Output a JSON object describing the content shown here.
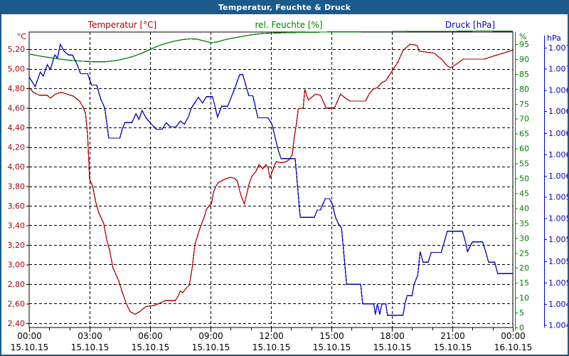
{
  "window": {
    "title_bar": {
      "title": "Temperatur, Feuchte & Druck",
      "bg_color": "#1b5a8b",
      "text_color": "#ffffff"
    }
  },
  "chart_data": {
    "type": "line",
    "title": "Temperatur, Feuchte & Druck",
    "legend": [
      {
        "label": "Temperatur [°C]",
        "color": "#b00000"
      },
      {
        "label": "rel. Feuchte [%]",
        "color": "#008000"
      },
      {
        "label": "Druck [hPa]",
        "color": "#0000bb"
      }
    ],
    "x_axis": {
      "range_hours": [
        0,
        24
      ],
      "minor_tick_every_hours": 1,
      "gridline_every_hours": 3,
      "ticks": [
        {
          "hour": 0,
          "time": "00:00",
          "date": "15.10.15"
        },
        {
          "hour": 3,
          "time": "03:00",
          "date": "15.10.15"
        },
        {
          "hour": 6,
          "time": "06:00",
          "date": "15.10.15"
        },
        {
          "hour": 9,
          "time": "09:00",
          "date": "15.10.15"
        },
        {
          "hour": 12,
          "time": "12:00",
          "date": "15.10.15"
        },
        {
          "hour": 15,
          "time": "15:00",
          "date": "15.10.15"
        },
        {
          "hour": 18,
          "time": "18:00",
          "date": "15.10.15"
        },
        {
          "hour": 21,
          "time": "21:00",
          "date": "15.10.15"
        },
        {
          "hour": 24,
          "time": "00:00",
          "date": "16.10.15"
        }
      ]
    },
    "y_axes": {
      "temperature": {
        "unit_label": "°C",
        "color": "#b00000",
        "side": "left",
        "top_value": 5.3755,
        "bottom_value": 2.3555,
        "tick_values": [
          5.2,
          5.0,
          4.8,
          4.6,
          4.4,
          4.2,
          4.0,
          3.8,
          3.6,
          3.4,
          3.2,
          3.0,
          2.8,
          2.6,
          2.4
        ],
        "tick_labels": [
          "5,20",
          "5,00",
          "4,80",
          "4,60",
          "4,40",
          "4,20",
          "4,00",
          "3,80",
          "3,60",
          "3,40",
          "3,20",
          "3,00",
          "2,80",
          "2,60",
          "2,40"
        ]
      },
      "humidity": {
        "unit_label": "%",
        "color": "#008000",
        "side": "right",
        "top_value": 99.06,
        "bottom_value": 0,
        "tick_values": [
          95,
          90,
          85,
          80,
          75,
          70,
          65,
          60,
          55,
          50,
          45,
          40,
          35,
          30,
          25,
          20,
          15,
          10,
          5,
          0
        ],
        "tick_labels": [
          "95",
          "90",
          "85",
          "80",
          "75",
          "70",
          "65",
          "60",
          "55",
          "50",
          "45",
          "40",
          "35",
          "30",
          "25",
          "20",
          "15",
          "10",
          "5",
          "0"
        ]
      },
      "pressure": {
        "unit_label": "hPa",
        "color": "#0000bb",
        "side": "far-right",
        "top_value": 1007.49,
        "bottom_value": 1003.87,
        "tick_values": [
          1007.3,
          1007.04,
          1006.78,
          1006.52,
          1006.25,
          1005.99,
          1005.73,
          1005.47,
          1005.21,
          1004.95,
          1004.68,
          1004.42,
          1004.16,
          1003.9
        ],
        "tick_labels": [
          "1.007",
          "1.007",
          "1.006",
          "1.006",
          "1.006",
          "1.006",
          "1.006",
          "1.005",
          "1.005",
          "1.005",
          "1.005",
          "1.005",
          "1.004",
          "1.004"
        ]
      }
    },
    "series": [
      {
        "name": "Temperatur",
        "axis": "temperature",
        "unit": "°C",
        "color": "#b00000",
        "points": [
          [
            0,
            4.81
          ],
          [
            0.2,
            4.76
          ],
          [
            0.5,
            4.73
          ],
          [
            0.9,
            4.73
          ],
          [
            1.05,
            4.7
          ],
          [
            1.3,
            4.74
          ],
          [
            1.6,
            4.76
          ],
          [
            1.9,
            4.74
          ],
          [
            2.2,
            4.72
          ],
          [
            2.5,
            4.67
          ],
          [
            2.7,
            4.6
          ],
          [
            2.8,
            4.54
          ],
          [
            2.9,
            4.32
          ],
          [
            3.0,
            3.87
          ],
          [
            3.15,
            3.8
          ],
          [
            3.3,
            3.64
          ],
          [
            3.45,
            3.53
          ],
          [
            3.7,
            3.42
          ],
          [
            3.85,
            3.25
          ],
          [
            4.0,
            3.14
          ],
          [
            4.15,
            2.97
          ],
          [
            4.45,
            2.83
          ],
          [
            4.6,
            2.73
          ],
          [
            4.8,
            2.61
          ],
          [
            5.0,
            2.52
          ],
          [
            5.25,
            2.49
          ],
          [
            5.5,
            2.52
          ],
          [
            5.8,
            2.57
          ],
          [
            6.2,
            2.58
          ],
          [
            6.55,
            2.61
          ],
          [
            6.75,
            2.63
          ],
          [
            7.25,
            2.63
          ],
          [
            7.4,
            2.68
          ],
          [
            7.5,
            2.73
          ],
          [
            7.62,
            2.71
          ],
          [
            7.8,
            2.76
          ],
          [
            7.95,
            2.79
          ],
          [
            8.1,
            2.98
          ],
          [
            8.22,
            3.2
          ],
          [
            8.37,
            3.3
          ],
          [
            8.51,
            3.39
          ],
          [
            8.68,
            3.48
          ],
          [
            8.79,
            3.56
          ],
          [
            8.93,
            3.6
          ],
          [
            9.05,
            3.62
          ],
          [
            9.15,
            3.74
          ],
          [
            9.27,
            3.8
          ],
          [
            9.4,
            3.84
          ],
          [
            9.6,
            3.86
          ],
          [
            9.8,
            3.88
          ],
          [
            10.0,
            3.89
          ],
          [
            10.2,
            3.88
          ],
          [
            10.33,
            3.85
          ],
          [
            10.45,
            3.75
          ],
          [
            10.57,
            3.67
          ],
          [
            10.68,
            3.62
          ],
          [
            10.8,
            3.72
          ],
          [
            10.92,
            3.83
          ],
          [
            11.05,
            3.9
          ],
          [
            11.25,
            3.95
          ],
          [
            11.4,
            4.02
          ],
          [
            11.6,
            3.98
          ],
          [
            11.75,
            4.02
          ],
          [
            11.86,
            3.99
          ],
          [
            11.95,
            3.88
          ],
          [
            12.1,
            3.97
          ],
          [
            12.25,
            4.05
          ],
          [
            12.5,
            4.04
          ],
          [
            12.75,
            4.05
          ],
          [
            12.9,
            4.07
          ],
          [
            13.05,
            4.12
          ],
          [
            13.15,
            4.29
          ],
          [
            13.27,
            4.45
          ],
          [
            13.35,
            4.59
          ],
          [
            13.6,
            4.6
          ],
          [
            13.68,
            4.79
          ],
          [
            13.86,
            4.68
          ],
          [
            14.2,
            4.74
          ],
          [
            14.45,
            4.73
          ],
          [
            14.74,
            4.6
          ],
          [
            15.15,
            4.6
          ],
          [
            15.45,
            4.74
          ],
          [
            15.7,
            4.7
          ],
          [
            15.92,
            4.67
          ],
          [
            16.7,
            4.67
          ],
          [
            16.86,
            4.74
          ],
          [
            17.05,
            4.79
          ],
          [
            17.3,
            4.81
          ],
          [
            17.45,
            4.85
          ],
          [
            17.7,
            4.88
          ],
          [
            18.05,
            4.99
          ],
          [
            18.3,
            5.07
          ],
          [
            18.56,
            5.19
          ],
          [
            18.9,
            5.25
          ],
          [
            19.25,
            5.24
          ],
          [
            19.35,
            5.18
          ],
          [
            20.1,
            5.16
          ],
          [
            20.5,
            5.09
          ],
          [
            20.75,
            5.03
          ],
          [
            20.9,
            5.01
          ],
          [
            21.15,
            5.04
          ],
          [
            21.35,
            5.07
          ],
          [
            21.55,
            5.1
          ],
          [
            22.6,
            5.1
          ],
          [
            23.2,
            5.14
          ],
          [
            23.7,
            5.17
          ],
          [
            24,
            5.19
          ]
        ]
      },
      {
        "name": "rel. Feuchte",
        "axis": "humidity",
        "unit": "%",
        "color": "#008000",
        "points": [
          [
            0,
            91.7
          ],
          [
            0.7,
            90.8
          ],
          [
            1.4,
            90.1
          ],
          [
            2.0,
            89.6
          ],
          [
            2.6,
            89.3
          ],
          [
            3.2,
            89.1
          ],
          [
            3.8,
            89.1
          ],
          [
            4.3,
            89.5
          ],
          [
            4.8,
            90.2
          ],
          [
            5.2,
            91.0
          ],
          [
            5.6,
            92.0
          ],
          [
            6.0,
            93.2
          ],
          [
            6.4,
            94.4
          ],
          [
            6.8,
            95.3
          ],
          [
            7.2,
            96.0
          ],
          [
            7.6,
            96.5
          ],
          [
            8.0,
            96.8
          ],
          [
            8.3,
            96.7
          ],
          [
            8.6,
            96.2
          ],
          [
            9.0,
            95.5
          ],
          [
            9.3,
            95.7
          ],
          [
            9.6,
            96.3
          ],
          [
            10.0,
            96.9
          ],
          [
            10.4,
            97.4
          ],
          [
            10.8,
            97.9
          ],
          [
            11.1,
            98.2
          ],
          [
            11.5,
            98.5
          ],
          [
            12.0,
            98.7
          ],
          [
            12.5,
            98.8
          ],
          [
            13.0,
            98.9
          ],
          [
            14.0,
            99.0
          ],
          [
            15.0,
            99.1
          ],
          [
            16.0,
            99.1
          ],
          [
            17.0,
            99.2
          ],
          [
            18.0,
            99.2
          ],
          [
            19.0,
            99.3
          ],
          [
            20.0,
            99.3
          ],
          [
            21.0,
            99.3
          ],
          [
            22.0,
            99.4
          ],
          [
            23.0,
            99.4
          ],
          [
            24.0,
            99.4
          ]
        ]
      },
      {
        "name": "Druck",
        "axis": "pressure",
        "unit": "hPa",
        "color": "#0000bb",
        "points": [
          [
            0,
            1006.94
          ],
          [
            0.3,
            1006.82
          ],
          [
            0.55,
            1007.0
          ],
          [
            0.7,
            1006.95
          ],
          [
            0.9,
            1007.09
          ],
          [
            1.05,
            1007.03
          ],
          [
            1.27,
            1007.21
          ],
          [
            1.4,
            1007.17
          ],
          [
            1.55,
            1007.34
          ],
          [
            1.75,
            1007.25
          ],
          [
            1.95,
            1007.21
          ],
          [
            2.15,
            1007.21
          ],
          [
            2.35,
            1007.11
          ],
          [
            2.55,
            1006.98
          ],
          [
            2.9,
            1006.98
          ],
          [
            3.1,
            1006.84
          ],
          [
            3.35,
            1006.84
          ],
          [
            3.55,
            1006.67
          ],
          [
            3.75,
            1006.56
          ],
          [
            3.95,
            1006.19
          ],
          [
            4.5,
            1006.19
          ],
          [
            4.62,
            1006.3
          ],
          [
            4.75,
            1006.38
          ],
          [
            5.1,
            1006.38
          ],
          [
            5.3,
            1006.49
          ],
          [
            5.45,
            1006.42
          ],
          [
            5.6,
            1006.53
          ],
          [
            5.8,
            1006.44
          ],
          [
            6.0,
            1006.38
          ],
          [
            6.3,
            1006.3
          ],
          [
            6.6,
            1006.3
          ],
          [
            6.8,
            1006.38
          ],
          [
            7.0,
            1006.33
          ],
          [
            7.3,
            1006.33
          ],
          [
            7.5,
            1006.4
          ],
          [
            7.7,
            1006.36
          ],
          [
            7.9,
            1006.45
          ],
          [
            8.05,
            1006.56
          ],
          [
            8.4,
            1006.69
          ],
          [
            8.6,
            1006.62
          ],
          [
            8.8,
            1006.7
          ],
          [
            9.1,
            1006.7
          ],
          [
            9.35,
            1006.45
          ],
          [
            9.55,
            1006.58
          ],
          [
            9.85,
            1006.58
          ],
          [
            10.2,
            1006.8
          ],
          [
            10.45,
            1006.97
          ],
          [
            10.6,
            1006.97
          ],
          [
            10.9,
            1006.71
          ],
          [
            11.1,
            1006.71
          ],
          [
            11.35,
            1006.44
          ],
          [
            11.85,
            1006.44
          ],
          [
            12.05,
            1006.36
          ],
          [
            12.35,
            1006.05
          ],
          [
            12.5,
            1005.94
          ],
          [
            13.2,
            1005.94
          ],
          [
            13.45,
            1005.22
          ],
          [
            14.15,
            1005.22
          ],
          [
            14.3,
            1005.31
          ],
          [
            14.45,
            1005.31
          ],
          [
            14.7,
            1005.45
          ],
          [
            14.9,
            1005.45
          ],
          [
            15.05,
            1005.38
          ],
          [
            15.2,
            1005.22
          ],
          [
            15.35,
            1005.14
          ],
          [
            15.5,
            1005.09
          ],
          [
            15.75,
            1004.4
          ],
          [
            16.45,
            1004.4
          ],
          [
            16.55,
            1004.16
          ],
          [
            17.1,
            1004.16
          ],
          [
            17.18,
            1004.03
          ],
          [
            17.28,
            1004.16
          ],
          [
            17.4,
            1004.03
          ],
          [
            17.5,
            1004.16
          ],
          [
            17.7,
            1004.16
          ],
          [
            17.78,
            1004.02
          ],
          [
            18.55,
            1004.02
          ],
          [
            18.65,
            1004.16
          ],
          [
            18.75,
            1004.26
          ],
          [
            19.0,
            1004.26
          ],
          [
            19.1,
            1004.4
          ],
          [
            19.28,
            1004.51
          ],
          [
            19.4,
            1004.8
          ],
          [
            19.55,
            1004.67
          ],
          [
            19.8,
            1004.67
          ],
          [
            19.95,
            1004.79
          ],
          [
            20.45,
            1004.79
          ],
          [
            20.75,
            1005.05
          ],
          [
            21.5,
            1005.05
          ],
          [
            21.65,
            1004.92
          ],
          [
            21.75,
            1004.8
          ],
          [
            22.0,
            1004.92
          ],
          [
            22.5,
            1004.92
          ],
          [
            22.65,
            1004.8
          ],
          [
            22.8,
            1004.67
          ],
          [
            23.1,
            1004.67
          ],
          [
            23.25,
            1004.53
          ],
          [
            24,
            1004.53
          ]
        ]
      }
    ],
    "grid": {
      "dash": "4 3",
      "color": "#000000"
    }
  }
}
